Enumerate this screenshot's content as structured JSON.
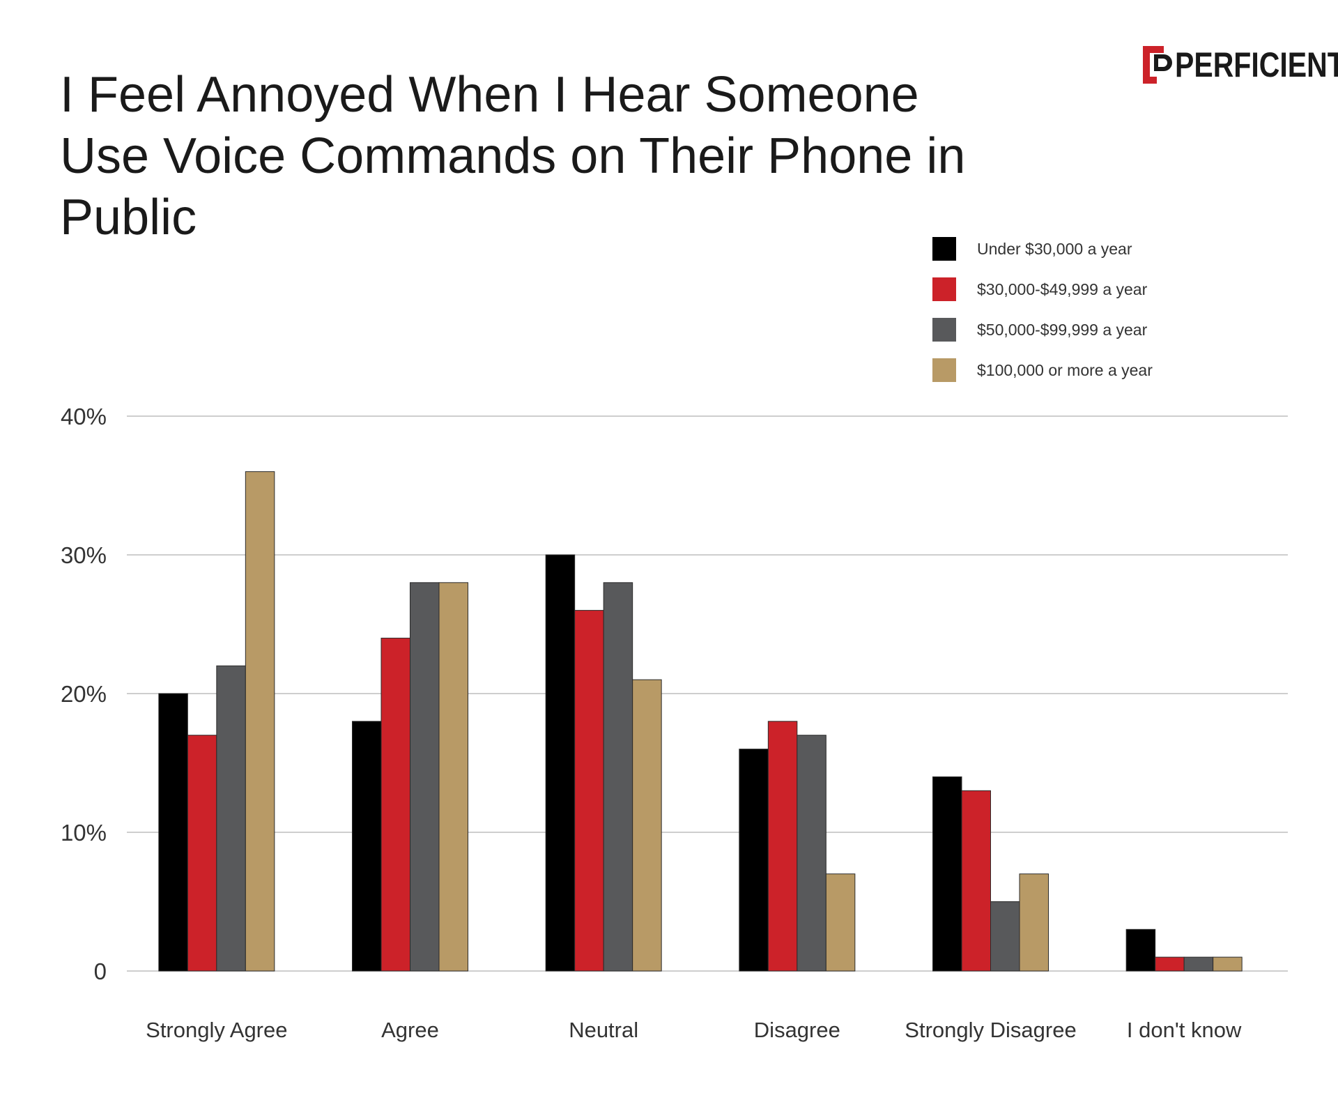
{
  "brand": {
    "name": "PERFICIENT",
    "accent": "#cc2229"
  },
  "colors": {
    "under30": "#000000",
    "30to50": "#cc2229",
    "50to100": "#58595b",
    "100plus": "#b89a66",
    "grid": "#bdbdbd"
  },
  "chart_data": {
    "type": "bar",
    "title_lines": [
      "I Feel Annoyed When I Hear Someone",
      "Use Voice Commands on Their Phone in Public"
    ],
    "categories": [
      "Strongly Agree",
      "Agree",
      "Neutral",
      "Disagree",
      "Strongly Disagree",
      "I don't know"
    ],
    "series": [
      {
        "name": "Under $30,000 a year",
        "color": "#000000",
        "values": [
          20,
          18,
          30,
          16,
          14,
          3
        ]
      },
      {
        "name": "$30,000-$49,999 a year",
        "color": "#cc2229",
        "values": [
          17,
          24,
          26,
          18,
          13,
          1
        ]
      },
      {
        "name": "$50,000-$99,999 a year",
        "color": "#58595b",
        "values": [
          22,
          28,
          28,
          17,
          5,
          1
        ]
      },
      {
        "name": "$100,000 or more a year",
        "color": "#b89a66",
        "values": [
          36,
          28,
          21,
          7,
          7,
          1
        ]
      }
    ],
    "yticks": [
      {
        "value": 0,
        "label": "0"
      },
      {
        "value": 10,
        "label": "10%"
      },
      {
        "value": 20,
        "label": "20%"
      },
      {
        "value": 30,
        "label": "30%"
      },
      {
        "value": 40,
        "label": "40%"
      }
    ],
    "ylim": [
      0,
      40
    ],
    "grid": true,
    "legend_position": "top-right",
    "xlabel": "",
    "ylabel": ""
  }
}
